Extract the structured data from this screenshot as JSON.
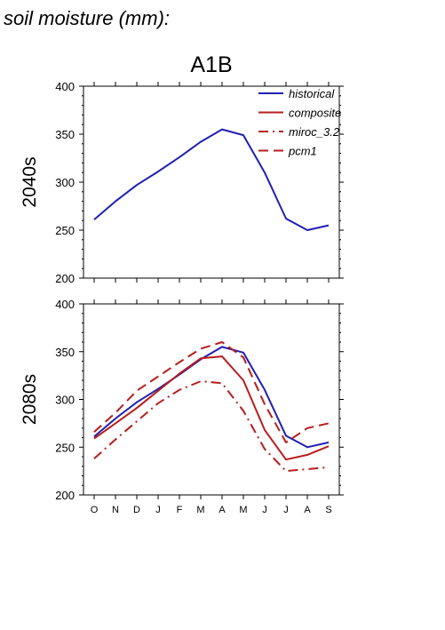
{
  "figure": {
    "title": "soil moisture (mm):",
    "scenario": "A1B"
  },
  "chart_data": [
    {
      "type": "line",
      "panel_label": "2040s",
      "x": [
        "O",
        "N",
        "D",
        "J",
        "F",
        "M",
        "A",
        "M",
        "J",
        "J",
        "A",
        "S"
      ],
      "ylim": [
        200,
        400
      ],
      "yticks": [
        200,
        250,
        300,
        350,
        400
      ],
      "grid": false,
      "legend": "top-right",
      "series": [
        {
          "name": "historical",
          "color": "#1f1fb4",
          "dash": "solid",
          "values": [
            261,
            280,
            297,
            311,
            326,
            342,
            355,
            349,
            310,
            262,
            250,
            255
          ]
        }
      ],
      "legend_entries": [
        {
          "name": "historical",
          "color": "#1f1fb4",
          "dash": "solid"
        },
        {
          "name": "composite",
          "color": "#b81c1c",
          "dash": "solid"
        },
        {
          "name": "miroc_3.2",
          "color": "#b81c1c",
          "dash": "dashdot"
        },
        {
          "name": "pcm1",
          "color": "#b81c1c",
          "dash": "dashed"
        }
      ]
    },
    {
      "type": "line",
      "panel_label": "2080s",
      "x": [
        "O",
        "N",
        "D",
        "J",
        "F",
        "M",
        "A",
        "M",
        "J",
        "J",
        "A",
        "S"
      ],
      "ylim": [
        200,
        400
      ],
      "yticks": [
        200,
        250,
        300,
        350,
        400
      ],
      "grid": false,
      "series": [
        {
          "name": "historical",
          "color": "#1f1fb4",
          "dash": "solid",
          "values": [
            261,
            280,
            297,
            311,
            326,
            342,
            355,
            349,
            310,
            262,
            250,
            255
          ]
        },
        {
          "name": "composite",
          "color": "#b81c1c",
          "dash": "solid",
          "values": [
            259,
            275,
            291,
            309,
            327,
            343,
            345,
            320,
            268,
            237,
            242,
            251
          ]
        },
        {
          "name": "miroc_3.2",
          "color": "#b81c1c",
          "dash": "dashdot",
          "values": [
            238,
            258,
            277,
            296,
            310,
            319,
            317,
            288,
            248,
            225,
            227,
            229
          ]
        },
        {
          "name": "pcm1",
          "color": "#b81c1c",
          "dash": "dashed",
          "values": [
            266,
            286,
            309,
            324,
            339,
            353,
            360,
            344,
            295,
            255,
            270,
            275
          ]
        }
      ]
    }
  ]
}
